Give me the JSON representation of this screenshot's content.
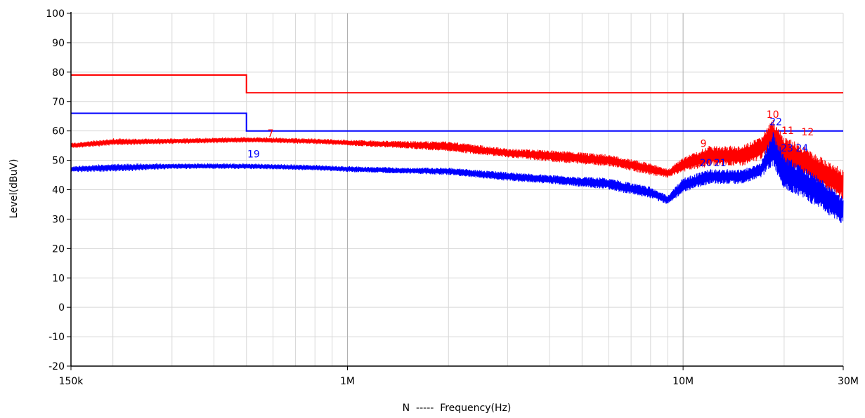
{
  "chart_data": {
    "type": "line",
    "xscale": "log",
    "xlim": [
      150000,
      30000000
    ],
    "ylim": [
      -20,
      100
    ],
    "xlabel": "N  -----  Frequency(Hz)",
    "ylabel": "Level(dBuV)",
    "y_ticks": [
      {
        "value": -20,
        "label": "-20"
      },
      {
        "value": -10,
        "label": "-10"
      },
      {
        "value": 0,
        "label": "0"
      },
      {
        "value": 10,
        "label": "10"
      },
      {
        "value": 20,
        "label": "20"
      },
      {
        "value": 30,
        "label": "30"
      },
      {
        "value": 40,
        "label": "40"
      },
      {
        "value": 50,
        "label": "50"
      },
      {
        "value": 60,
        "label": "60"
      },
      {
        "value": 70,
        "label": "70"
      },
      {
        "value": 80,
        "label": "80"
      },
      {
        "value": 90,
        "label": "90"
      },
      {
        "value": 100,
        "label": "100"
      }
    ],
    "x_ticks": [
      {
        "value": 150000,
        "label": "150k"
      },
      {
        "value": 1000000,
        "label": "1M"
      },
      {
        "value": 10000000,
        "label": "10M"
      },
      {
        "value": 30000000,
        "label": "30M"
      }
    ],
    "colors": {
      "red": "#ff0000",
      "blue": "#0000ff",
      "grid": "#d8d8d8"
    },
    "limit_lines": [
      {
        "color": "red",
        "points": [
          [
            150000,
            79
          ],
          [
            500000,
            79
          ],
          [
            500000,
            73
          ],
          [
            30000000,
            73
          ]
        ]
      },
      {
        "color": "blue",
        "points": [
          [
            150000,
            66
          ],
          [
            500000,
            66
          ],
          [
            500000,
            60
          ],
          [
            30000000,
            60
          ]
        ]
      }
    ],
    "series": [
      {
        "color": "red",
        "envelope": [
          [
            150000,
            54,
            56
          ],
          [
            200000,
            55,
            57.5
          ],
          [
            300000,
            55.5,
            57.5
          ],
          [
            500000,
            56,
            58
          ],
          [
            800000,
            55.5,
            57.5
          ],
          [
            1000000,
            55,
            57
          ],
          [
            1500000,
            54,
            56.5
          ],
          [
            2000000,
            53,
            56.5
          ],
          [
            3000000,
            51,
            54
          ],
          [
            4000000,
            49.5,
            53.5
          ],
          [
            6000000,
            48,
            52
          ],
          [
            8000000,
            45,
            49
          ],
          [
            9000000,
            44,
            47
          ],
          [
            10000000,
            46,
            51
          ],
          [
            12000000,
            48,
            55
          ],
          [
            15000000,
            48,
            55
          ],
          [
            17000000,
            50,
            58
          ],
          [
            18500000,
            54,
            64
          ],
          [
            20000000,
            47,
            58
          ],
          [
            22000000,
            45,
            56
          ],
          [
            25000000,
            42,
            52
          ],
          [
            30000000,
            36,
            47
          ]
        ]
      },
      {
        "color": "blue",
        "envelope": [
          [
            150000,
            46,
            48
          ],
          [
            200000,
            46,
            49
          ],
          [
            300000,
            47,
            49
          ],
          [
            500000,
            47,
            49
          ],
          [
            800000,
            46.5,
            48.5
          ],
          [
            1000000,
            46,
            48
          ],
          [
            1500000,
            45.5,
            47.5
          ],
          [
            2000000,
            45,
            47.5
          ],
          [
            3000000,
            43,
            46
          ],
          [
            4000000,
            42,
            45
          ],
          [
            6000000,
            40,
            44
          ],
          [
            8000000,
            37,
            41
          ],
          [
            9000000,
            35,
            38
          ],
          [
            10000000,
            39,
            44
          ],
          [
            12000000,
            42,
            47
          ],
          [
            15000000,
            42,
            47
          ],
          [
            17000000,
            44,
            49
          ],
          [
            18500000,
            48,
            60
          ],
          [
            20000000,
            40,
            52
          ],
          [
            22000000,
            38,
            49
          ],
          [
            25000000,
            34,
            45
          ],
          [
            30000000,
            28,
            38
          ]
        ]
      }
    ],
    "markers": [
      {
        "label": "7",
        "x": 590000,
        "y": 58,
        "color": "red"
      },
      {
        "label": "9",
        "x": 11500000,
        "y": 54.5,
        "color": "red"
      },
      {
        "label": "10",
        "x": 18500000,
        "y": 64.5,
        "color": "red"
      },
      {
        "label": "11",
        "x": 20500000,
        "y": 59,
        "color": "red"
      },
      {
        "label": "12",
        "x": 23500000,
        "y": 58.5,
        "color": "red"
      },
      {
        "label": "19",
        "x": 525000,
        "y": 51,
        "color": "blue"
      },
      {
        "label": "20",
        "x": 11700000,
        "y": 48,
        "color": "blue"
      },
      {
        "label": "21",
        "x": 12900000,
        "y": 48,
        "color": "blue"
      },
      {
        "label": "22",
        "x": 18900000,
        "y": 62,
        "color": "blue"
      },
      {
        "label": "23",
        "x": 20400000,
        "y": 53,
        "color": "blue"
      },
      {
        "label": "24",
        "x": 22600000,
        "y": 53,
        "color": "blue"
      }
    ]
  }
}
